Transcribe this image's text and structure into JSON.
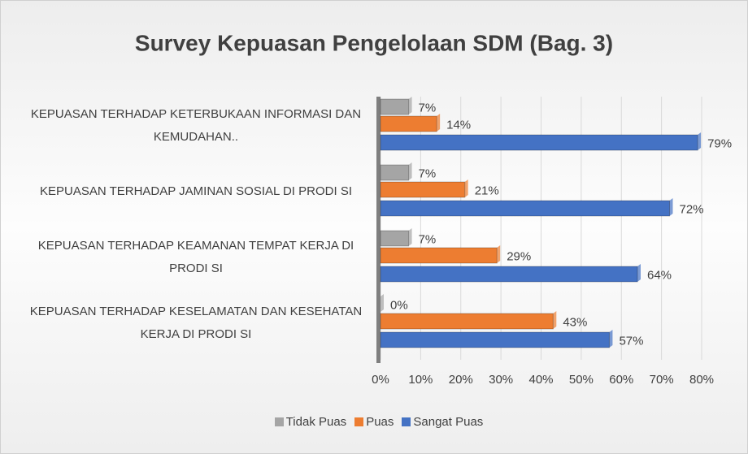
{
  "chart_data": {
    "type": "hbar",
    "title": "Survey Kepuasan Pengelolaan SDM (Bag. 3)",
    "categories": [
      "KEPUASAN TERHADAP KETERBUKAAN INFORMASI DAN KEMUDAHAN..",
      "KEPUASAN TERHADAP JAMINAN SOSIAL DI PRODI SI",
      "KEPUASAN TERHADAP KEAMANAN TEMPAT KERJA DI PRODI SI",
      "KEPUASAN TERHADAP KESELAMATAN DAN KESEHATAN KERJA DI PRODI SI"
    ],
    "series": [
      {
        "name": "Tidak Puas",
        "color": "#a5a5a5",
        "values": [
          7,
          7,
          7,
          0
        ],
        "value_labels": [
          "7%",
          "7%",
          "7%",
          "0%"
        ]
      },
      {
        "name": "Puas",
        "color": "#ed7d31",
        "values": [
          14,
          21,
          29,
          43
        ],
        "value_labels": [
          "14%",
          "21%",
          "29%",
          "43%"
        ]
      },
      {
        "name": "Sangat Puas",
        "color": "#4472c4",
        "values": [
          79,
          72,
          64,
          57
        ],
        "value_labels": [
          "79%",
          "72%",
          "64%",
          "57%"
        ]
      }
    ],
    "xlim": [
      0,
      80
    ],
    "xticks": [
      {
        "value": 0,
        "label": "0%"
      },
      {
        "value": 10,
        "label": "10%"
      },
      {
        "value": 20,
        "label": "20%"
      },
      {
        "value": 30,
        "label": "30%"
      },
      {
        "value": 40,
        "label": "40%"
      },
      {
        "value": 50,
        "label": "50%"
      },
      {
        "value": 60,
        "label": "60%"
      },
      {
        "value": 70,
        "label": "70%"
      },
      {
        "value": 80,
        "label": "80%"
      }
    ],
    "grid": true,
    "legend": "bottom"
  }
}
